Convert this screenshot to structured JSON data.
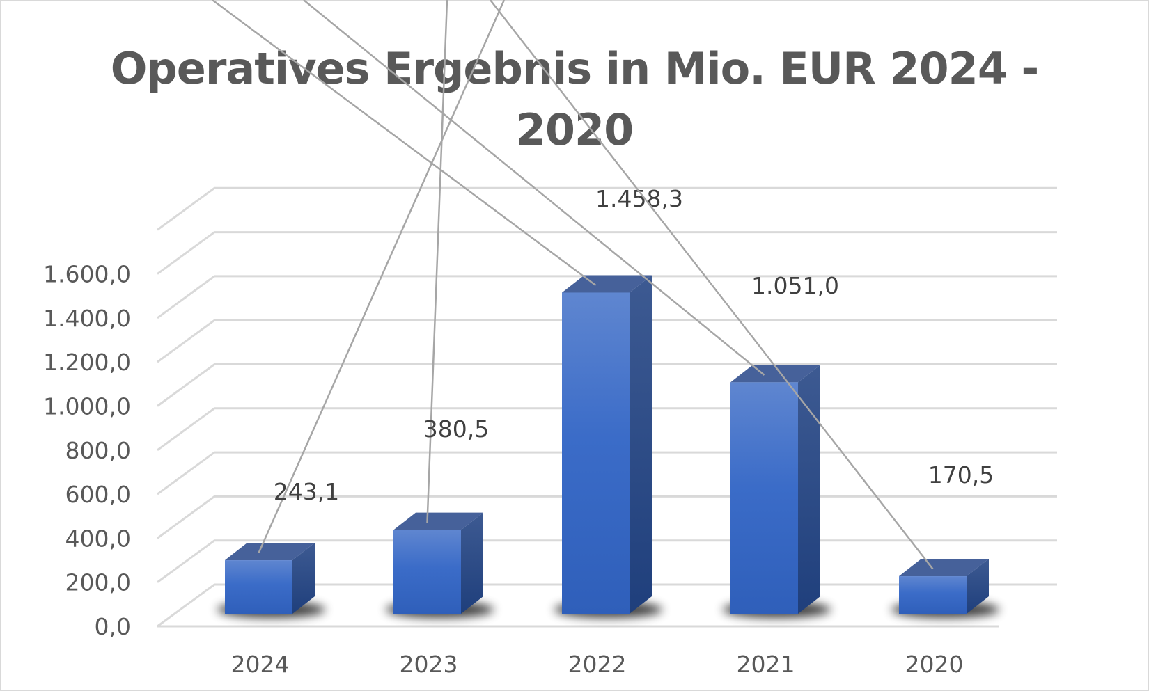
{
  "chart_data": {
    "type": "bar",
    "variant": "3d-column",
    "title": "Operatives Ergebnis in Mio. EUR 2024 - 2020",
    "title_lines": [
      "Operatives Ergebnis in Mio. EUR 2024 -",
      "2020"
    ],
    "xlabel": "",
    "ylabel": "",
    "categories": [
      "2024",
      "2023",
      "2022",
      "2021",
      "2020"
    ],
    "values": [
      243.1,
      380.5,
      1458.3,
      1051.0,
      170.5
    ],
    "data_labels": [
      "243,1",
      "380,5",
      "1.458,3",
      "1.051,0",
      "170,5"
    ],
    "yticks": [
      "0,0",
      "200,0",
      "400,0",
      "600,0",
      "800,0",
      "1.000,0",
      "1.200,0",
      "1.400,0",
      "1.600,0"
    ],
    "ylim": [
      0,
      1600
    ],
    "grid": true,
    "legend": "none",
    "colors": {
      "bar_front": "#4472c4",
      "bar_top": "#46619a",
      "bar_side": "#2c4a86",
      "gridline": "#d9d9d9",
      "text": "#595959",
      "label_text": "#404040",
      "leader_line": "#a6a6a6"
    }
  }
}
